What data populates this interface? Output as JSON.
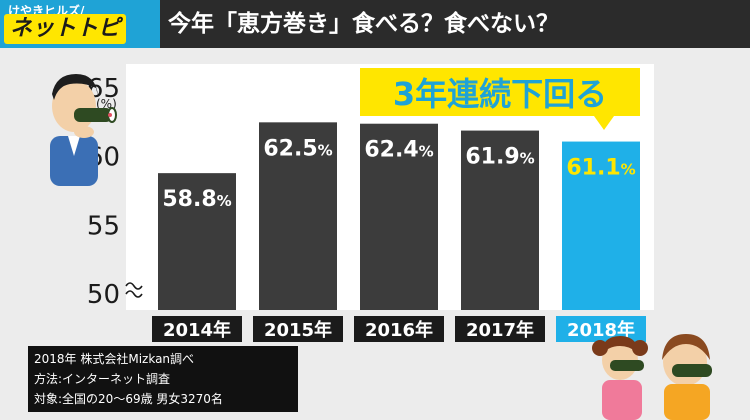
{
  "header": {
    "logo_top": "けやきヒルズ/",
    "logo_main": "ネットトピ",
    "title": "今年「恵方巻き」食べる？食べない？"
  },
  "chart_data": {
    "type": "bar",
    "categories": [
      "2014年",
      "2015年",
      "2016年",
      "2017年",
      "2018年"
    ],
    "values": [
      58.8,
      62.5,
      62.4,
      61.9,
      61.1
    ],
    "value_labels": [
      "58.8%",
      "62.5%",
      "62.4%",
      "61.9%",
      "61.1%"
    ],
    "ylim": [
      50,
      65
    ],
    "yticks": [
      50,
      55,
      60,
      65
    ],
    "yunit": "(%)",
    "axis_break": true,
    "grid": false,
    "highlight_index": 4,
    "colors": {
      "bar": "#3c3c3c",
      "highlight": "#1fb0e8",
      "highlight_label": "#ffe600"
    },
    "annotation": "3年連続下回る"
  },
  "notes": [
    "2018年 株式会社Mizkan調べ",
    "方法:インターネット調査",
    "対象:全国の20～69歳 男女3270名"
  ]
}
